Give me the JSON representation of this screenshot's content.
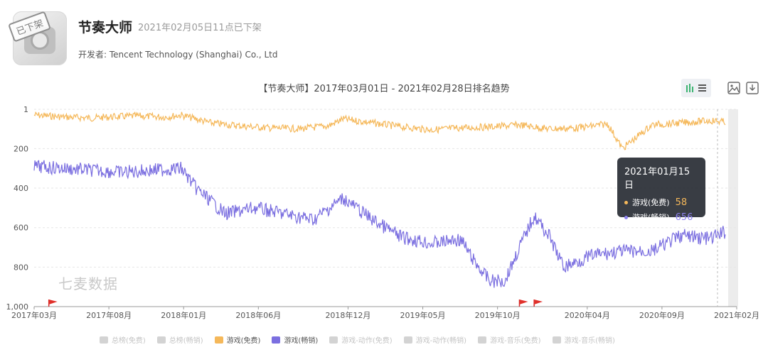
{
  "app": {
    "name": "节奏大师",
    "status": "2021年02月05日11点已下架",
    "developer": "开发者: Tencent Technology (Shanghai) Co., Ltd",
    "icon_stamp": "已下架"
  },
  "toolbar": {
    "icons": [
      "bar-line-toggle-icon",
      "save-image-icon",
      "download-icon"
    ]
  },
  "watermark": "七麦数据",
  "tooltip": {
    "date": "2021年01月15日",
    "rows": [
      {
        "label": "游戏(免费)",
        "value": "58",
        "color": "#f5b85a"
      },
      {
        "label": "游戏(畅销)",
        "value": "656",
        "color": "#7b6fe0"
      }
    ]
  },
  "legend": [
    {
      "label": "总榜(免费)",
      "active": false,
      "color": "#d3d3d3"
    },
    {
      "label": "总榜(畅销)",
      "active": false,
      "color": "#d3d3d3"
    },
    {
      "label": "游戏(免费)",
      "active": true,
      "color": "#f5b85a"
    },
    {
      "label": "游戏(畅销)",
      "active": true,
      "color": "#7b6fe0"
    },
    {
      "label": "游戏-动作(免费)",
      "active": false,
      "color": "#d3d3d3"
    },
    {
      "label": "游戏-动作(畅销)",
      "active": false,
      "color": "#d3d3d3"
    },
    {
      "label": "游戏-音乐(免费)",
      "active": false,
      "color": "#d3d3d3"
    },
    {
      "label": "游戏-音乐(畅销)",
      "active": false,
      "color": "#d3d3d3"
    }
  ],
  "chart_data": {
    "type": "line",
    "title": "【节奏大师】2017年03月01日 - 2021年02月28日排名趋势",
    "y_inverted": true,
    "ylim": [
      1,
      1000
    ],
    "y_ticks": [
      "1",
      "200",
      "400",
      "600",
      "800",
      "1,000"
    ],
    "x_ticks": [
      "2017年03月",
      "2017年08月",
      "2018年01月",
      "2018年06月",
      "2018年12月",
      "2019年05月",
      "2019年10月",
      "2020年04月",
      "2020年09月",
      "2021年02月"
    ],
    "grid": true,
    "legend_position": "bottom",
    "series": [
      {
        "name": "游戏(免费)",
        "color": "#f5b85a",
        "points": [
          [
            "2017-03",
            30
          ],
          [
            "2017-05",
            40
          ],
          [
            "2017-07",
            45
          ],
          [
            "2017-08",
            40
          ],
          [
            "2017-10",
            35
          ],
          [
            "2017-12",
            40
          ],
          [
            "2018-01",
            30
          ],
          [
            "2018-03",
            70
          ],
          [
            "2018-05",
            85
          ],
          [
            "2018-07",
            95
          ],
          [
            "2018-09",
            100
          ],
          [
            "2018-11",
            85
          ],
          [
            "2018-12",
            50
          ],
          [
            "2019-02",
            70
          ],
          [
            "2019-04",
            90
          ],
          [
            "2019-06",
            105
          ],
          [
            "2019-08",
            95
          ],
          [
            "2019-10",
            90
          ],
          [
            "2019-12",
            80
          ],
          [
            "2020-02",
            100
          ],
          [
            "2020-04",
            95
          ],
          [
            "2020-06",
            75
          ],
          [
            "2020-07",
            200
          ],
          [
            "2020-09",
            80
          ],
          [
            "2020-11",
            70
          ],
          [
            "2021-01",
            58
          ],
          [
            "2021-02",
            65
          ]
        ]
      },
      {
        "name": "游戏(畅销)",
        "color": "#7b6fe0",
        "points": [
          [
            "2017-03",
            290
          ],
          [
            "2017-05",
            300
          ],
          [
            "2017-07",
            310
          ],
          [
            "2017-09",
            320
          ],
          [
            "2017-11",
            310
          ],
          [
            "2018-01",
            300
          ],
          [
            "2018-02",
            400
          ],
          [
            "2018-04",
            530
          ],
          [
            "2018-06",
            500
          ],
          [
            "2018-08",
            530
          ],
          [
            "2018-10",
            560
          ],
          [
            "2018-12",
            450
          ],
          [
            "2019-02",
            560
          ],
          [
            "2019-04",
            650
          ],
          [
            "2019-06",
            680
          ],
          [
            "2019-08",
            660
          ],
          [
            "2019-09",
            780
          ],
          [
            "2019-10",
            870
          ],
          [
            "2019-11",
            870
          ],
          [
            "2019-12",
            700
          ],
          [
            "2020-01",
            540
          ],
          [
            "2020-02",
            640
          ],
          [
            "2020-03",
            800
          ],
          [
            "2020-05",
            740
          ],
          [
            "2020-07",
            720
          ],
          [
            "2020-09",
            720
          ],
          [
            "2020-11",
            640
          ],
          [
            "2021-01",
            656
          ],
          [
            "2021-02",
            620
          ]
        ]
      }
    ],
    "markers": [
      "2017-04",
      "2019-12",
      "2020-01"
    ],
    "hover_date": "2021-01-15"
  }
}
